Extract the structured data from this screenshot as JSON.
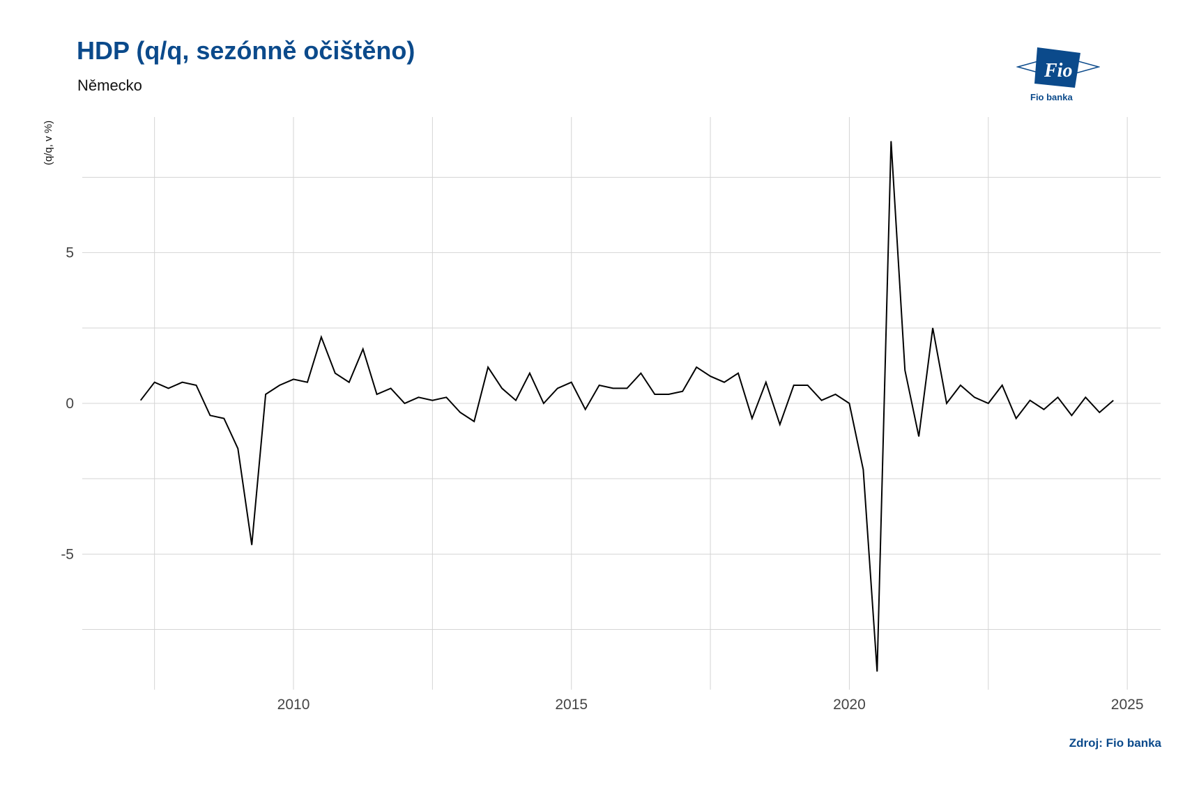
{
  "header": {
    "title": "HDP (q/q, sezónně očištěno)",
    "subtitle": "Německo"
  },
  "logo": {
    "mark_text": "Fio",
    "caption": "Fio banka",
    "color": "#0b4a8b"
  },
  "footer": {
    "source": "Zdroj: Fio banka"
  },
  "colors": {
    "title": "#0b4a8b",
    "line": "#000000",
    "grid": "#d4d4d4"
  },
  "chart_data": {
    "type": "line",
    "title": "HDP (q/q, sezónně očištěno)",
    "subtitle": "Německo",
    "xlabel": "",
    "ylabel": "(q/q, v %)",
    "xlim": [
      2006.2,
      2025.6
    ],
    "ylim": [
      -9.5,
      9.5
    ],
    "x_ticks": [
      2010,
      2015,
      2020,
      2025
    ],
    "x_tick_labels": [
      "2010",
      "2015",
      "2020",
      "2025"
    ],
    "y_ticks": [
      -5,
      0,
      5
    ],
    "y_tick_labels": [
      "-5",
      "0",
      "5"
    ],
    "grid": true,
    "legend": "none",
    "series": [
      {
        "x": [
          2007.25,
          2007.5,
          2007.75,
          2008.0,
          2008.25,
          2008.5,
          2008.75,
          2009.0,
          2009.25,
          2009.5,
          2009.75,
          2010.0,
          2010.25,
          2010.5,
          2010.75,
          2011.0,
          2011.25,
          2011.5,
          2011.75,
          2012.0,
          2012.25,
          2012.5,
          2012.75,
          2013.0,
          2013.25,
          2013.5,
          2013.75,
          2014.0,
          2014.25,
          2014.5,
          2014.75,
          2015.0,
          2015.25,
          2015.5,
          2015.75,
          2016.0,
          2016.25,
          2016.5,
          2016.75,
          2017.0,
          2017.25,
          2017.5,
          2017.75,
          2018.0,
          2018.25,
          2018.5,
          2018.75,
          2019.0,
          2019.25,
          2019.5,
          2019.75,
          2020.0,
          2020.25,
          2020.5,
          2020.75,
          2021.0,
          2021.25,
          2021.5,
          2021.75,
          2022.0,
          2022.25,
          2022.5,
          2022.75,
          2023.0,
          2023.25,
          2023.5,
          2023.75,
          2024.0,
          2024.25,
          2024.5,
          2024.75
        ],
        "values": [
          0.1,
          0.7,
          0.5,
          0.7,
          0.6,
          -0.4,
          -0.5,
          -1.5,
          -4.7,
          0.3,
          0.6,
          0.8,
          0.7,
          2.2,
          1.0,
          0.7,
          1.8,
          0.3,
          0.5,
          0.0,
          0.2,
          0.1,
          0.2,
          -0.3,
          -0.6,
          1.2,
          0.5,
          0.1,
          1.0,
          0.0,
          0.5,
          0.7,
          -0.2,
          0.6,
          0.5,
          0.5,
          1.0,
          0.3,
          0.3,
          0.4,
          1.2,
          0.9,
          0.7,
          1.0,
          -0.5,
          0.7,
          -0.7,
          0.6,
          0.6,
          0.1,
          0.3,
          0.0,
          -2.2,
          -8.9,
          8.7,
          1.1,
          -1.1,
          2.5,
          0.0,
          0.6,
          0.2,
          0.0,
          0.6,
          -0.5,
          0.1,
          -0.2,
          0.2,
          -0.4,
          0.2,
          -0.3,
          0.1
        ]
      }
    ]
  }
}
